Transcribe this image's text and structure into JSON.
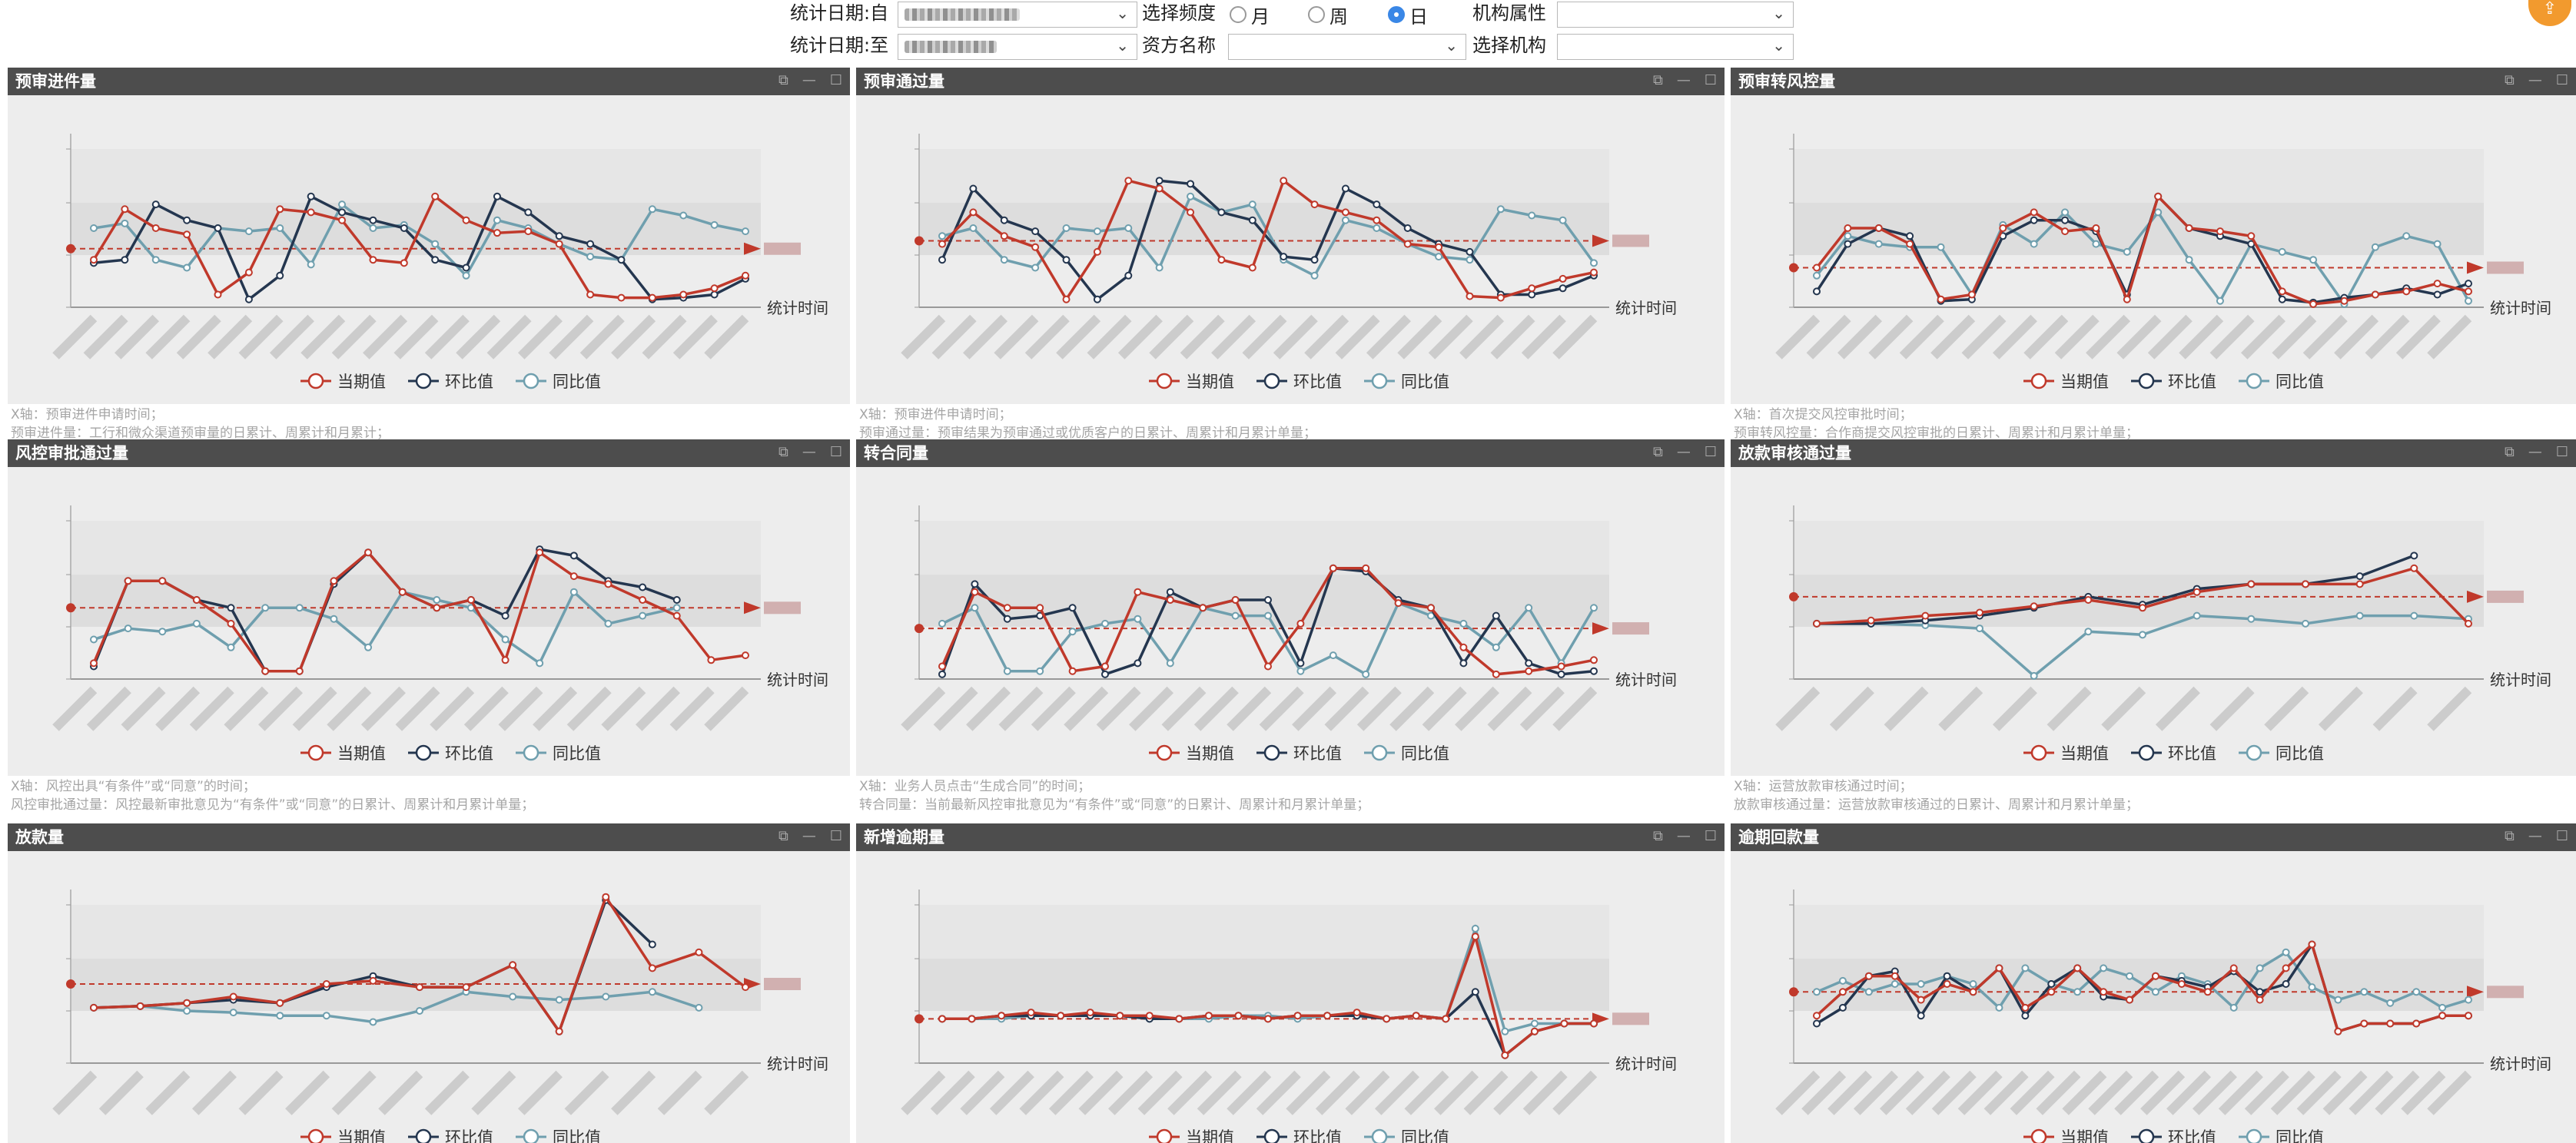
{
  "filters": {
    "date_from_label": "统计日期:自",
    "date_to_label": "统计日期:至",
    "frequency_label": "选择频度",
    "frequency_options": [
      "月",
      "周",
      "日"
    ],
    "frequency_selected": "日",
    "org_attr_label": "机构属性",
    "fund_name_label": "资方名称",
    "org_select_label": "选择机构"
  },
  "common": {
    "x_axis_name": "统计时间",
    "legend": [
      "当期值",
      "环比值",
      "同比值"
    ]
  },
  "colors": {
    "current": "#c0392b",
    "mom": "#24364f",
    "yoy": "#6f9fae",
    "header_bg": "#4d4d4d",
    "chart_bg": "#ededed",
    "band": "#dddddd"
  },
  "panels": [
    {
      "title": "预审进件量",
      "notes": [
        "X轴：预审进件申请时间；",
        "预审进件量：工行和微众渠道预审量的日累计、周累计和月累计；"
      ],
      "chart_data": {
        "type": "line",
        "ylim": [
          0,
          100
        ],
        "avg": 37,
        "current": [
          30,
          62,
          50,
          46,
          8,
          22,
          62,
          60,
          55,
          30,
          28,
          70,
          55,
          47,
          48,
          40,
          8,
          6,
          6,
          8,
          12,
          20
        ],
        "mom": [
          28,
          30,
          65,
          55,
          50,
          5,
          20,
          70,
          60,
          55,
          50,
          30,
          25,
          70,
          60,
          45,
          40,
          30,
          5,
          6,
          8,
          18
        ],
        "yoy": [
          50,
          53,
          30,
          25,
          50,
          48,
          50,
          27,
          65,
          50,
          52,
          40,
          20,
          55,
          50,
          40,
          32,
          30,
          62,
          58,
          52,
          48
        ]
      }
    },
    {
      "title": "预审通过量",
      "notes": [
        "X轴：预审进件申请时间；",
        "预审通过量：预审结果为预审通过或优质客户的日累计、周累计和月累计单量；"
      ],
      "chart_data": {
        "type": "line",
        "ylim": [
          0,
          100
        ],
        "avg": 42,
        "current": [
          40,
          60,
          45,
          38,
          5,
          35,
          80,
          75,
          60,
          30,
          25,
          80,
          65,
          60,
          55,
          40,
          38,
          7,
          6,
          12,
          18,
          22
        ],
        "mom": [
          30,
          75,
          55,
          48,
          30,
          5,
          20,
          80,
          78,
          60,
          55,
          32,
          30,
          75,
          65,
          50,
          40,
          35,
          8,
          8,
          12,
          20
        ],
        "yoy": [
          45,
          50,
          30,
          25,
          50,
          48,
          50,
          25,
          70,
          60,
          65,
          30,
          20,
          55,
          50,
          40,
          32,
          30,
          62,
          58,
          55,
          28
        ]
      }
    },
    {
      "title": "预审转风控量",
      "notes": [
        "X轴：首次提交风控审批时间；",
        "预审转风控量：合作商提交风控审批的日累计、周累计和月累计单量；"
      ],
      "chart_data": {
        "type": "line",
        "ylim": [
          0,
          100
        ],
        "avg": 25,
        "current": [
          25,
          50,
          50,
          40,
          5,
          8,
          50,
          60,
          48,
          50,
          5,
          70,
          50,
          48,
          45,
          10,
          2,
          4,
          8,
          10,
          15,
          10
        ],
        "mom": [
          10,
          40,
          50,
          45,
          4,
          5,
          45,
          55,
          55,
          48,
          8,
          70,
          50,
          45,
          40,
          5,
          3,
          6,
          8,
          12,
          8,
          15
        ],
        "yoy": [
          20,
          45,
          40,
          38,
          38,
          8,
          52,
          40,
          60,
          40,
          35,
          60,
          30,
          4,
          40,
          35,
          30,
          2,
          38,
          45,
          40,
          4
        ]
      }
    },
    {
      "title": "风控审批通过量",
      "notes": [
        "X轴：风控出具“有条件”或“同意”的时间；",
        "风控审批通过量：风控最新审批意见为“有条件”或“同意”的日累计、周累计和月累计单量；"
      ],
      "chart_data": {
        "type": "line",
        "ylim": [
          0,
          100
        ],
        "avg": 45,
        "current": [
          10,
          62,
          62,
          50,
          35,
          5,
          5,
          62,
          80,
          55,
          45,
          50,
          12,
          80,
          65,
          60,
          50,
          40,
          12,
          15
        ],
        "mom": [
          8,
          62,
          62,
          50,
          45,
          5,
          5,
          60,
          80,
          55,
          45,
          50,
          40,
          82,
          78,
          62,
          58,
          50
        ],
        "yoy": [
          25,
          32,
          30,
          35,
          20,
          45,
          45,
          38,
          20,
          55,
          50,
          45,
          25,
          10,
          55,
          35,
          40,
          45
        ]
      }
    },
    {
      "title": "转合同量",
      "notes": [
        "X轴：业务人员点击“生成合同”的时间；",
        "转合同量：当前最新风控审批意见为“有条件”或“同意”的日累计、周累计和月累计单量；"
      ],
      "chart_data": {
        "type": "line",
        "ylim": [
          0,
          100
        ],
        "avg": 32,
        "current": [
          8,
          55,
          45,
          45,
          5,
          8,
          55,
          50,
          45,
          50,
          8,
          35,
          70,
          70,
          48,
          45,
          20,
          3,
          5,
          8,
          12
        ],
        "mom": [
          3,
          60,
          38,
          40,
          45,
          3,
          10,
          55,
          45,
          50,
          50,
          10,
          70,
          68,
          50,
          45,
          10,
          40,
          10,
          3,
          5
        ],
        "yoy": [
          35,
          45,
          5,
          5,
          30,
          35,
          38,
          10,
          45,
          40,
          40,
          5,
          15,
          3,
          48,
          40,
          35,
          20,
          45,
          10,
          45
        ]
      }
    },
    {
      "title": "放款审核通过量",
      "notes": [
        "X轴：运营放款审核通过时间；",
        "放款审核通过量：运营放款审核通过的日累计、周累计和月累计单量；"
      ],
      "chart_data": {
        "type": "line",
        "ylim": [
          0,
          100
        ],
        "avg": 52,
        "current": [
          35,
          37,
          40,
          42,
          46,
          50,
          45,
          55,
          60,
          60,
          60,
          70,
          35
        ],
        "mom": [
          35,
          35,
          37,
          40,
          45,
          52,
          47,
          57,
          60,
          60,
          65,
          78
        ],
        "yoy": [
          35,
          35,
          34,
          32,
          2,
          30,
          28,
          40,
          38,
          35,
          40,
          40,
          38
        ]
      }
    },
    {
      "title": "放款量",
      "notes": [],
      "chart_data": {
        "type": "line",
        "ylim": [
          0,
          100
        ],
        "avg": 50,
        "current": [
          35,
          36,
          38,
          42,
          38,
          50,
          52,
          48,
          48,
          62,
          20,
          105,
          60,
          70,
          48
        ],
        "mom": [
          35,
          36,
          38,
          40,
          38,
          48,
          55,
          48,
          48,
          62,
          20,
          103,
          75
        ],
        "yoy": [
          35,
          36,
          33,
          32,
          30,
          30,
          26,
          33,
          45,
          42,
          40,
          42,
          45,
          35
        ]
      }
    },
    {
      "title": "新增逾期量",
      "notes": [],
      "chart_data": {
        "type": "line",
        "ylim": [
          0,
          100
        ],
        "avg": 28,
        "current": [
          28,
          28,
          30,
          32,
          30,
          32,
          30,
          30,
          28,
          30,
          30,
          28,
          30,
          30,
          32,
          28,
          30,
          28,
          80,
          5,
          20,
          25,
          25
        ],
        "mom": [
          28,
          28,
          30,
          30,
          30,
          30,
          30,
          28,
          28,
          30,
          30,
          28,
          30,
          30,
          30,
          28,
          30,
          28,
          45,
          5,
          20,
          25,
          25
        ],
        "yoy": [
          28,
          28,
          28,
          30,
          30,
          30,
          30,
          28,
          28,
          28,
          30,
          30,
          28,
          30,
          30,
          28,
          30,
          28,
          85,
          20,
          25,
          25,
          25
        ]
      }
    },
    {
      "title": "逾期回款量",
      "notes": [],
      "chart_data": {
        "type": "line",
        "ylim": [
          0,
          100
        ],
        "avg": 45,
        "current": [
          30,
          45,
          55,
          55,
          40,
          50,
          45,
          60,
          35,
          45,
          60,
          45,
          40,
          55,
          50,
          45,
          60,
          40,
          60,
          75,
          20,
          25,
          25,
          25,
          30,
          30
        ],
        "mom": [
          25,
          35,
          55,
          58,
          30,
          55,
          45,
          60,
          30,
          50,
          60,
          42,
          40,
          55,
          52,
          48,
          58,
          45,
          50,
          75,
          20,
          25,
          25,
          25,
          30,
          30
        ],
        "yoy": [
          45,
          52,
          45,
          50,
          50,
          55,
          50,
          35,
          60,
          50,
          45,
          60,
          55,
          45,
          55,
          50,
          35,
          60,
          70,
          48,
          40,
          45,
          38,
          45,
          35,
          40
        ]
      }
    }
  ]
}
